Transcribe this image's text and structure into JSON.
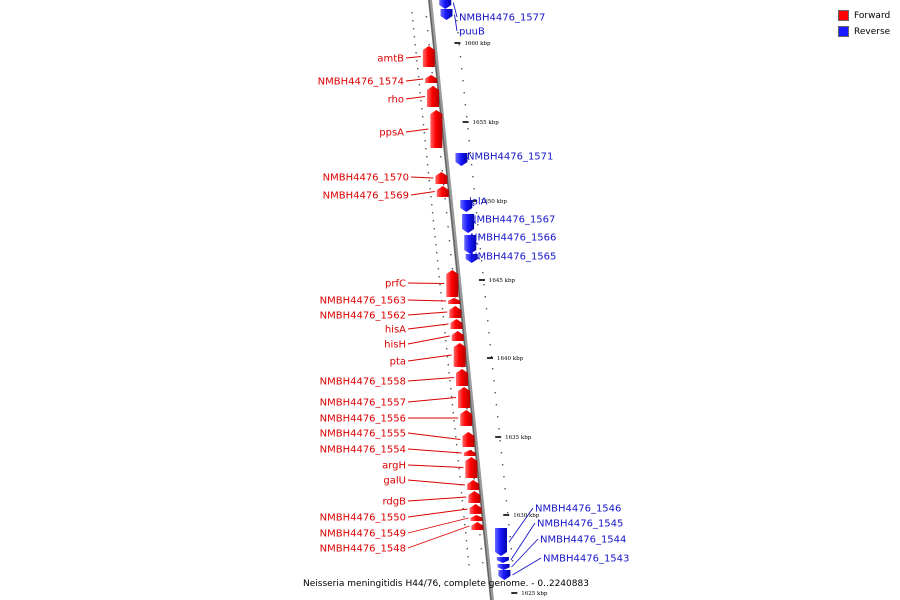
{
  "legend": {
    "forward": {
      "label": "Forward",
      "color": "#ff0000"
    },
    "reverse": {
      "label": "Reverse",
      "color": "#1a1aff"
    }
  },
  "caption": "Neisseria meningitidis H44/76, complete genome. - 0..2240883",
  "ticks": [
    "1660 kbp",
    "1655 kbp",
    "1650 kbp",
    "1645 kbp",
    "1640 kbp",
    "1635 kbp",
    "1630 kbp",
    "1625 kbp"
  ],
  "genes": [
    {
      "name": "NMBH4476_1577",
      "strand": "reverse"
    },
    {
      "name": "puuB",
      "strand": "reverse"
    },
    {
      "name": "amtB",
      "strand": "forward"
    },
    {
      "name": "NMBH4476_1574",
      "strand": "forward"
    },
    {
      "name": "rho",
      "strand": "forward"
    },
    {
      "name": "ppsA",
      "strand": "forward"
    },
    {
      "name": "NMBH4476_1571",
      "strand": "reverse"
    },
    {
      "name": "NMBH4476_1570",
      "strand": "forward"
    },
    {
      "name": "NMBH4476_1569",
      "strand": "forward"
    },
    {
      "name": "lolA",
      "strand": "reverse"
    },
    {
      "name": "NMBH4476_1567",
      "strand": "reverse"
    },
    {
      "name": "NMBH4476_1566",
      "strand": "reverse"
    },
    {
      "name": "NMBH4476_1565",
      "strand": "reverse"
    },
    {
      "name": "prfC",
      "strand": "forward"
    },
    {
      "name": "NMBH4476_1563",
      "strand": "forward"
    },
    {
      "name": "NMBH4476_1562",
      "strand": "forward"
    },
    {
      "name": "hisA",
      "strand": "forward"
    },
    {
      "name": "hisH",
      "strand": "forward"
    },
    {
      "name": "pta",
      "strand": "forward"
    },
    {
      "name": "NMBH4476_1558",
      "strand": "forward"
    },
    {
      "name": "NMBH4476_1557",
      "strand": "forward"
    },
    {
      "name": "NMBH4476_1556",
      "strand": "forward"
    },
    {
      "name": "NMBH4476_1555",
      "strand": "forward"
    },
    {
      "name": "NMBH4476_1554",
      "strand": "forward"
    },
    {
      "name": "argH",
      "strand": "forward"
    },
    {
      "name": "galU",
      "strand": "forward"
    },
    {
      "name": "rdgB",
      "strand": "forward"
    },
    {
      "name": "NMBH4476_1550",
      "strand": "forward"
    },
    {
      "name": "NMBH4476_1549",
      "strand": "forward"
    },
    {
      "name": "NMBH4476_1548",
      "strand": "forward"
    },
    {
      "name": "NMBH4476_1546",
      "strand": "reverse"
    },
    {
      "name": "NMBH4476_1545",
      "strand": "reverse"
    },
    {
      "name": "NMBH4476_1544",
      "strand": "reverse"
    },
    {
      "name": "NMBH4476_1543",
      "strand": "reverse"
    }
  ]
}
